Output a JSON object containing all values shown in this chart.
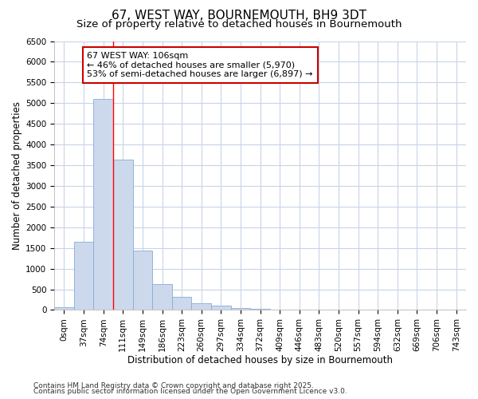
{
  "title1": "67, WEST WAY, BOURNEMOUTH, BH9 3DT",
  "title2": "Size of property relative to detached houses in Bournemouth",
  "xlabel": "Distribution of detached houses by size in Bournemouth",
  "ylabel": "Number of detached properties",
  "bar_color": "#ccd9ed",
  "bar_edge_color": "#8aaad4",
  "categories": [
    "0sqm",
    "37sqm",
    "74sqm",
    "111sqm",
    "149sqm",
    "186sqm",
    "223sqm",
    "260sqm",
    "297sqm",
    "334sqm",
    "372sqm",
    "409sqm",
    "446sqm",
    "483sqm",
    "520sqm",
    "557sqm",
    "594sqm",
    "632sqm",
    "669sqm",
    "706sqm",
    "743sqm"
  ],
  "values": [
    75,
    1650,
    5100,
    3640,
    1430,
    620,
    310,
    155,
    100,
    50,
    35,
    0,
    0,
    0,
    0,
    0,
    0,
    0,
    0,
    0,
    0
  ],
  "ylim": [
    0,
    6500
  ],
  "yticks": [
    0,
    500,
    1000,
    1500,
    2000,
    2500,
    3000,
    3500,
    4000,
    4500,
    5000,
    5500,
    6000,
    6500
  ],
  "red_line_x": 3,
  "annotation_text": "67 WEST WAY: 106sqm\n← 46% of detached houses are smaller (5,970)\n53% of semi-detached houses are larger (6,897) →",
  "annotation_box_color": "#ffffff",
  "annotation_box_edge": "#cc0000",
  "footer1": "Contains HM Land Registry data © Crown copyright and database right 2025.",
  "footer2": "Contains public sector information licensed under the Open Government Licence v3.0.",
  "background_color": "#ffffff",
  "plot_bg_color": "#ffffff",
  "grid_color": "#c8d4e8",
  "title_fontsize": 11,
  "subtitle_fontsize": 9.5,
  "axis_label_fontsize": 8.5,
  "tick_fontsize": 7.5,
  "annotation_fontsize": 8,
  "footer_fontsize": 6.5
}
